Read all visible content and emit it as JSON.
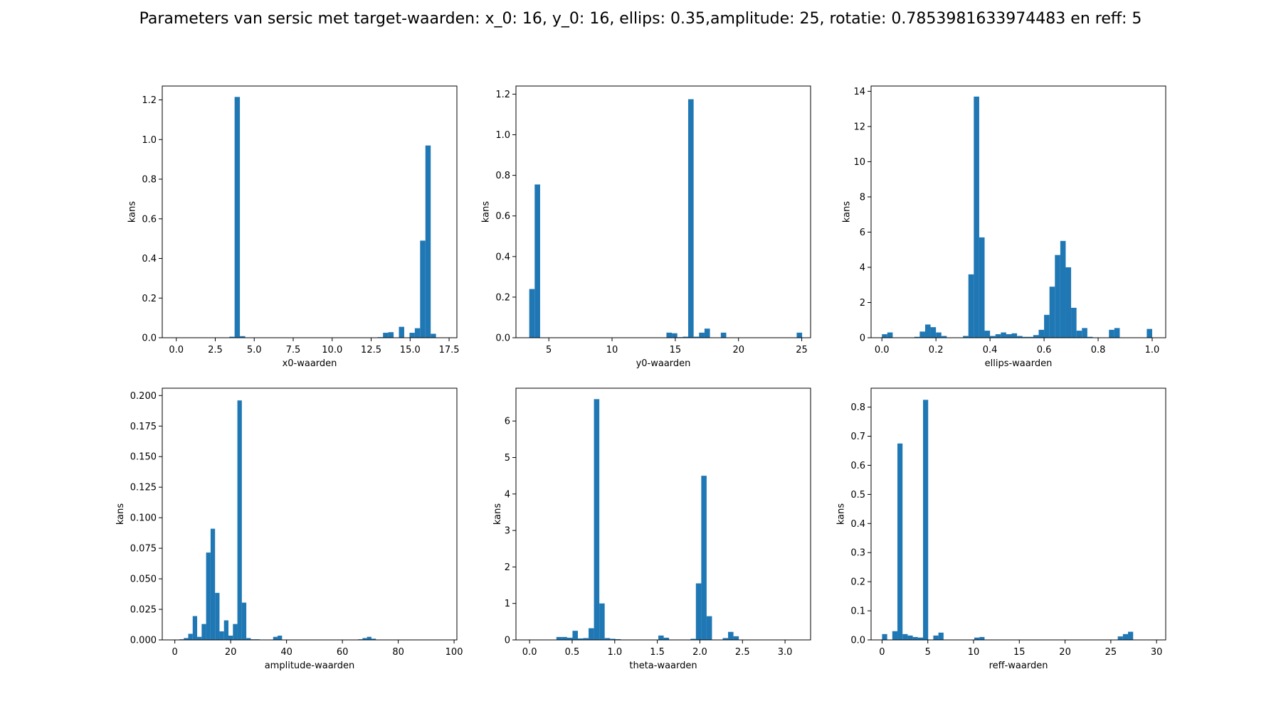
{
  "figure": {
    "suptitle": "Parameters van sersic met target-waarden: x_0: 16, y_0: 16, ellips: 0.35,amplitude: 25, rotatie: 0.7853981633974483 en reff: 5"
  },
  "colors": {
    "bar": "#1f77b4"
  },
  "chart_data": [
    {
      "type": "bar",
      "xlabel": "x0-waarden",
      "ylabel": "kans",
      "xlim": [
        -0.9,
        18.0
      ],
      "ylim": [
        0,
        1.27
      ],
      "xticks": [
        0,
        2.5,
        5,
        7.5,
        10,
        12.5,
        15,
        17.5
      ],
      "xtick_labels": [
        "0.0",
        "2.5",
        "5.0",
        "7.5",
        "10.0",
        "12.5",
        "15.0",
        "17.5"
      ],
      "yticks": [
        0,
        0.2,
        0.4,
        0.6,
        0.8,
        1.0,
        1.2
      ],
      "ytick_labels": [
        "0.0",
        "0.2",
        "0.4",
        "0.6",
        "0.8",
        "1.0",
        "1.2"
      ],
      "bin_width": 0.34,
      "x": [
        3.4,
        3.74,
        4.08,
        12.92,
        13.26,
        13.6,
        14.28,
        14.96,
        15.3,
        15.64,
        15.98,
        16.32
      ],
      "values": [
        0.005,
        1.215,
        0.008,
        0.003,
        0.025,
        0.028,
        0.055,
        0.025,
        0.048,
        0.49,
        0.97,
        0.02
      ]
    },
    {
      "type": "bar",
      "xlabel": "y0-waarden",
      "ylabel": "kans",
      "xlim": [
        2.4,
        25.7
      ],
      "ylim": [
        0,
        1.24
      ],
      "xticks": [
        5,
        10,
        15,
        20,
        25
      ],
      "xtick_labels": [
        "5",
        "10",
        "15",
        "20",
        "25"
      ],
      "yticks": [
        0,
        0.2,
        0.4,
        0.6,
        0.8,
        1.0,
        1.2
      ],
      "ytick_labels": [
        "0.0",
        "0.2",
        "0.4",
        "0.6",
        "0.8",
        "1.0",
        "1.2"
      ],
      "bin_width": 0.43,
      "x": [
        3.45,
        3.88,
        14.3,
        14.73,
        15.16,
        15.59,
        16.02,
        16.45,
        16.88,
        17.31,
        18.6,
        24.6
      ],
      "values": [
        0.24,
        0.755,
        0.025,
        0.022,
        0.003,
        0.005,
        1.175,
        0.005,
        0.025,
        0.045,
        0.025,
        0.025
      ]
    },
    {
      "type": "bar",
      "xlabel": "ellips-waarden",
      "ylabel": "kans",
      "xlim": [
        -0.04,
        1.05
      ],
      "ylim": [
        0,
        14.3
      ],
      "xticks": [
        0,
        0.2,
        0.4,
        0.6,
        0.8,
        1.0
      ],
      "xtick_labels": [
        "0.0",
        "0.2",
        "0.4",
        "0.6",
        "0.8",
        "1.0"
      ],
      "yticks": [
        0,
        2,
        4,
        6,
        8,
        10,
        12,
        14
      ],
      "ytick_labels": [
        "0",
        "2",
        "4",
        "6",
        "8",
        "10",
        "12",
        "14"
      ],
      "bin_width": 0.02,
      "x": [
        0.0,
        0.02,
        0.12,
        0.14,
        0.16,
        0.18,
        0.2,
        0.22,
        0.3,
        0.32,
        0.34,
        0.36,
        0.38,
        0.4,
        0.42,
        0.44,
        0.46,
        0.48,
        0.5,
        0.52,
        0.54,
        0.56,
        0.58,
        0.6,
        0.62,
        0.64,
        0.66,
        0.68,
        0.7,
        0.72,
        0.74,
        0.76,
        0.84,
        0.86,
        0.98
      ],
      "values": [
        0.2,
        0.3,
        0.05,
        0.35,
        0.75,
        0.6,
        0.3,
        0.1,
        0.1,
        3.6,
        13.7,
        5.7,
        0.4,
        0.1,
        0.2,
        0.3,
        0.2,
        0.25,
        0.1,
        0.05,
        0.05,
        0.15,
        0.45,
        1.3,
        2.9,
        4.7,
        5.5,
        4.0,
        1.7,
        0.4,
        0.55,
        0.05,
        0.45,
        0.55,
        0.5
      ]
    },
    {
      "type": "bar",
      "xlabel": "amplitude-waarden",
      "ylabel": "kans",
      "xlim": [
        -4.5,
        101
      ],
      "ylim": [
        0,
        0.206
      ],
      "xticks": [
        0,
        20,
        40,
        60,
        80,
        100
      ],
      "xtick_labels": [
        "0",
        "20",
        "40",
        "60",
        "80",
        "100"
      ],
      "yticks": [
        0,
        0.025,
        0.05,
        0.075,
        0.1,
        0.125,
        0.15,
        0.175,
        0.2
      ],
      "ytick_labels": [
        "0.000",
        "0.025",
        "0.050",
        "0.075",
        "0.100",
        "0.125",
        "0.150",
        "0.175",
        "0.200"
      ],
      "bin_width": 1.6,
      "x": [
        1.6,
        3.2,
        4.8,
        6.4,
        8.0,
        9.6,
        11.2,
        12.8,
        14.4,
        16.0,
        17.6,
        19.2,
        20.8,
        22.4,
        24.0,
        25.6,
        27.2,
        28.8,
        35.2,
        36.8,
        65.6,
        67.2,
        68.8,
        70.4
      ],
      "values": [
        0.0005,
        0.0015,
        0.005,
        0.0195,
        0.0025,
        0.013,
        0.0715,
        0.091,
        0.0385,
        0.007,
        0.016,
        0.0035,
        0.013,
        0.196,
        0.0305,
        0.0015,
        0.0005,
        0.0005,
        0.0025,
        0.0035,
        0.0005,
        0.0015,
        0.0025,
        0.001
      ]
    },
    {
      "type": "bar",
      "xlabel": "theta-waarden",
      "ylabel": "kans",
      "xlim": [
        -0.16,
        3.3
      ],
      "ylim": [
        0,
        6.9
      ],
      "xticks": [
        0,
        0.5,
        1,
        1.5,
        2,
        2.5,
        3
      ],
      "xtick_labels": [
        "0.0",
        "0.5",
        "1.0",
        "1.5",
        "2.0",
        "2.5",
        "3.0"
      ],
      "yticks": [
        0,
        1,
        2,
        3,
        4,
        5,
        6
      ],
      "ytick_labels": [
        "0",
        "1",
        "2",
        "3",
        "4",
        "5",
        "6"
      ],
      "bin_width": 0.063,
      "x": [
        0.315,
        0.378,
        0.441,
        0.504,
        0.567,
        0.63,
        0.693,
        0.756,
        0.819,
        0.882,
        0.945,
        1.008,
        1.512,
        1.575,
        1.89,
        1.953,
        2.016,
        2.079,
        2.268,
        2.331,
        2.394
      ],
      "values": [
        0.08,
        0.08,
        0.06,
        0.25,
        0.04,
        0.05,
        0.32,
        6.6,
        1.0,
        0.05,
        0.03,
        0.02,
        0.12,
        0.06,
        0.03,
        1.55,
        4.5,
        0.65,
        0.05,
        0.22,
        0.1
      ]
    },
    {
      "type": "bar",
      "xlabel": "reff-waarden",
      "ylabel": "kans",
      "xlim": [
        -1.2,
        31.0
      ],
      "ylim": [
        0,
        0.865
      ],
      "xticks": [
        0,
        5,
        10,
        15,
        20,
        25,
        30
      ],
      "xtick_labels": [
        "0",
        "5",
        "10",
        "15",
        "20",
        "25",
        "30"
      ],
      "yticks": [
        0,
        0.1,
        0.2,
        0.3,
        0.4,
        0.5,
        0.6,
        0.7,
        0.8
      ],
      "ytick_labels": [
        "0.0",
        "0.1",
        "0.2",
        "0.3",
        "0.4",
        "0.5",
        "0.6",
        "0.7",
        "0.8"
      ],
      "bin_width": 0.56,
      "x": [
        0.0,
        1.12,
        1.68,
        2.24,
        2.8,
        3.36,
        3.92,
        4.48,
        5.6,
        6.16,
        10.08,
        10.64,
        25.76,
        26.32,
        26.88
      ],
      "values": [
        0.02,
        0.03,
        0.675,
        0.02,
        0.015,
        0.01,
        0.008,
        0.825,
        0.015,
        0.025,
        0.008,
        0.01,
        0.012,
        0.02,
        0.028
      ]
    }
  ]
}
